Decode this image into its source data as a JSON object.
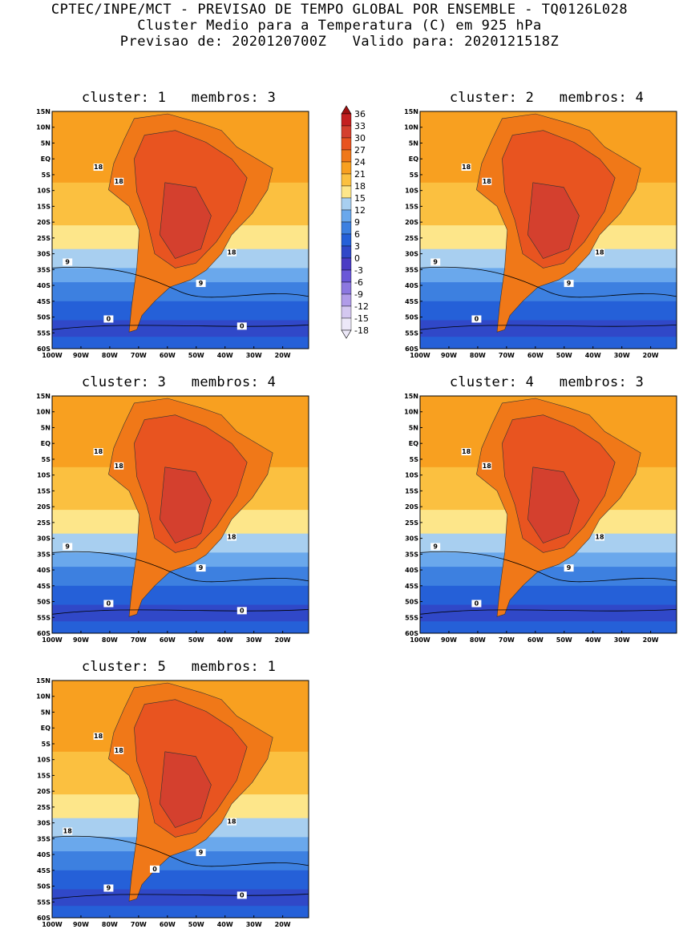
{
  "header": {
    "line1": "CPTEC/INPE/MCT - PREVISAO DE TEMPO GLOBAL POR ENSEMBLE - TQ0126L028",
    "line2": "Cluster Medio para a Temperatura (C) em 925 hPa",
    "line3": "Previsao de: 2020120700Z   Valido para: 2020121518Z"
  },
  "axes": {
    "lat_labels": [
      "15N",
      "10N",
      "5N",
      "EQ",
      "5S",
      "10S",
      "15S",
      "20S",
      "25S",
      "30S",
      "35S",
      "40S",
      "45S",
      "50S",
      "55S",
      "60S"
    ],
    "lon_labels": [
      "100W",
      "90W",
      "80W",
      "70W",
      "60W",
      "50W",
      "40W",
      "30W",
      "20W"
    ],
    "lat_range": [
      -60,
      15
    ],
    "lon_range": [
      -100,
      -11
    ]
  },
  "colorbar": {
    "labels": [
      "36",
      "33",
      "30",
      "27",
      "24",
      "21",
      "18",
      "15",
      "12",
      "9",
      "6",
      "3",
      "0",
      "-3",
      "-6",
      "-9",
      "-12",
      "-15",
      "-18"
    ],
    "colors": [
      "#9e1010",
      "#c42020",
      "#d4402e",
      "#e85420",
      "#f07818",
      "#f8a020",
      "#fbc040",
      "#fde68a",
      "#a8cff0",
      "#6aa8ec",
      "#3d80e0",
      "#2560d8",
      "#3048c8",
      "#4a3cc4",
      "#6a58d8",
      "#8c78e0",
      "#b09ce8",
      "#d4c8f0",
      "#ece8f8"
    ]
  },
  "clusters": [
    {
      "title": "cluster: 1   membros: 3",
      "contour_labels": [
        "18",
        "18",
        "18",
        "9",
        "9",
        "0",
        "0"
      ]
    },
    {
      "title": "cluster: 2   membros: 4",
      "contour_labels": [
        "18",
        "18",
        "18",
        "9",
        "9",
        "0"
      ]
    },
    {
      "title": "cluster: 3   membros: 4",
      "contour_labels": [
        "18",
        "18",
        "18",
        "9",
        "9",
        "0",
        "0"
      ]
    },
    {
      "title": "cluster: 4   membros: 3",
      "contour_labels": [
        "18",
        "18",
        "18",
        "9",
        "9",
        "0"
      ]
    },
    {
      "title": "cluster: 5   membros: 1",
      "contour_labels": [
        "18",
        "18",
        "18",
        "18",
        "9",
        "9",
        "0",
        "0"
      ]
    }
  ]
}
